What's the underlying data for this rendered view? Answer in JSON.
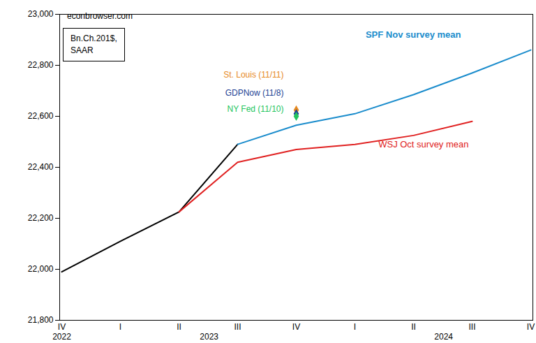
{
  "chart_data": {
    "type": "line",
    "source": "econbrowser.com",
    "units": "Bn.Ch.201$,\nSAAR",
    "categories": [
      "IV",
      "I",
      "II",
      "III",
      "IV",
      "I",
      "II",
      "III",
      "IV"
    ],
    "years": [
      {
        "label": "2022",
        "from": 0,
        "to": 0
      },
      {
        "label": "2023",
        "from": 1,
        "to": 4
      },
      {
        "label": "2024",
        "from": 5,
        "to": 8
      }
    ],
    "ylim": [
      21800,
      23000
    ],
    "yticks": [
      {
        "value": 21800,
        "label": "21,800"
      },
      {
        "value": 22000,
        "label": "22,000"
      },
      {
        "value": 22200,
        "label": "22,200"
      },
      {
        "value": 22400,
        "label": "22,400"
      },
      {
        "value": 22600,
        "label": "22,600"
      },
      {
        "value": 22800,
        "label": "22,800"
      },
      {
        "value": 23000,
        "label": "23,000"
      }
    ],
    "grid": false,
    "series": [
      {
        "type": "line",
        "color": "#000000",
        "values": [
          21990,
          22110,
          22225,
          22490,
          null,
          null,
          null,
          null,
          null
        ]
      },
      {
        "name": "SPF Nov survey mean",
        "type": "line",
        "color": "#1a8ccc",
        "values": [
          null,
          null,
          null,
          22490,
          22565,
          22610,
          22685,
          22770,
          22860
        ]
      },
      {
        "name": "WSJ Oct survey mean",
        "type": "line",
        "color": "#e02020",
        "values": [
          null,
          null,
          22225,
          22420,
          22470,
          22490,
          22525,
          22580,
          null
        ]
      },
      {
        "name": "St. Louis (11/11)",
        "type": "scatter",
        "marker": "diamond",
        "color": "#e6891f",
        "values": [
          null,
          null,
          null,
          null,
          22625,
          null,
          null,
          null,
          null
        ]
      },
      {
        "name": "GDPNow (11/8)",
        "type": "scatter",
        "marker": "diamond",
        "color": "#1c3f94",
        "values": [
          null,
          null,
          null,
          null,
          22610,
          null,
          null,
          null,
          null
        ]
      },
      {
        "name": "NY Fed (11/10)",
        "type": "scatter",
        "marker": "diamond",
        "color": "#22c55e",
        "values": [
          null,
          null,
          null,
          null,
          22600,
          null,
          null,
          null,
          null
        ]
      }
    ]
  }
}
